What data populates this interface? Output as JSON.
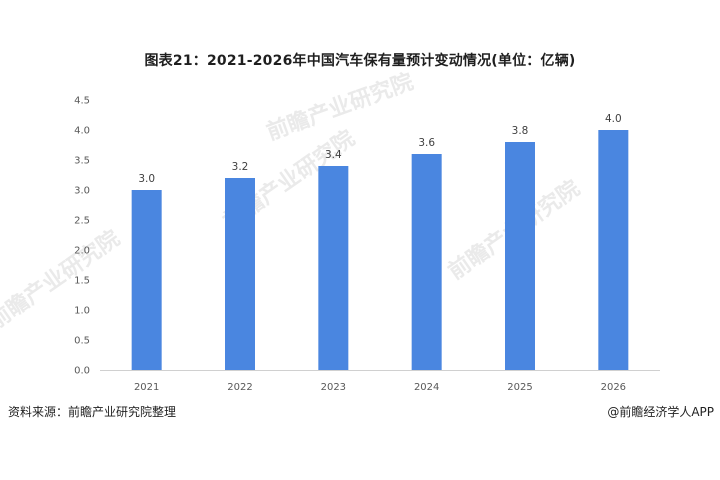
{
  "chart_data": {
    "type": "bar",
    "title": "图表21：2021-2026年中国汽车保有量预计变动情况(单位：亿辆)",
    "categories": [
      "2021",
      "2022",
      "2023",
      "2024",
      "2025",
      "2026"
    ],
    "values": [
      3.0,
      3.2,
      3.4,
      3.6,
      3.8,
      4.0
    ],
    "value_labels": [
      "3.0",
      "3.2",
      "3.4",
      "3.6",
      "3.8",
      "4.0"
    ],
    "y_ticks": [
      "0.0",
      "0.5",
      "1.0",
      "1.5",
      "2.0",
      "2.5",
      "3.0",
      "3.5",
      "4.0",
      "4.5"
    ],
    "ylim": [
      0,
      4.5
    ],
    "xlabel": "",
    "ylabel": "",
    "grid": false,
    "legend": "none",
    "bar_color": "#4a86e0"
  },
  "footer": {
    "source": "资料来源：前瞻产业研究院整理",
    "credit": "@前瞻经济学人APP"
  },
  "watermark": {
    "text": "前瞻产业研究院"
  }
}
